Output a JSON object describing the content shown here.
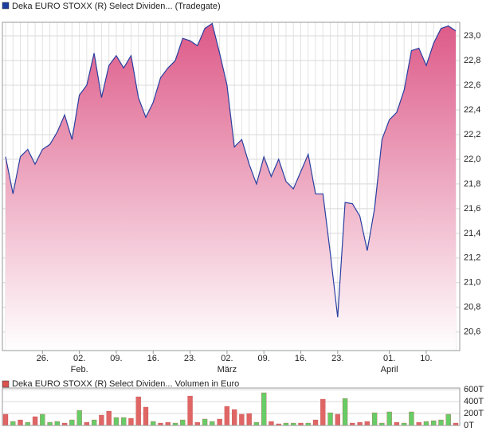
{
  "chart_data": [
    {
      "type": "area",
      "legend": "Deka EURO STOXX (R) Select Dividen... (Tradegate)",
      "legend_color": "#1a3d9c",
      "line_color": "#2a3fa0",
      "fill_color": "#e0608c",
      "categories": [
        null,
        null,
        null,
        null,
        null,
        "26.",
        null,
        null,
        null,
        null,
        "02.",
        null,
        null,
        null,
        null,
        "09.",
        null,
        null,
        null,
        null,
        "16.",
        null,
        null,
        null,
        null,
        "23.",
        null,
        null,
        null,
        null,
        "02.",
        null,
        null,
        null,
        null,
        "09.",
        null,
        null,
        null,
        null,
        "16.",
        null,
        null,
        null,
        null,
        "23.",
        null,
        null,
        null,
        null,
        null,
        null,
        "01.",
        null,
        null,
        null,
        null,
        "10.",
        null,
        null,
        null,
        null
      ],
      "months": [
        null,
        null,
        null,
        null,
        null,
        null,
        null,
        null,
        null,
        null,
        "Feb.",
        null,
        null,
        null,
        null,
        null,
        null,
        null,
        null,
        null,
        null,
        null,
        null,
        null,
        null,
        null,
        null,
        null,
        null,
        null,
        "März",
        null,
        null,
        null,
        null,
        null,
        null,
        null,
        null,
        null,
        null,
        null,
        null,
        null,
        null,
        null,
        null,
        null,
        null,
        null,
        null,
        null,
        "April",
        null,
        null,
        null,
        null,
        null,
        null,
        null,
        null,
        null
      ],
      "values": [
        22.02,
        21.72,
        22.02,
        22.08,
        21.96,
        22.08,
        22.12,
        22.22,
        22.36,
        22.16,
        22.52,
        22.6,
        22.86,
        22.5,
        22.76,
        22.84,
        22.74,
        22.84,
        22.5,
        22.34,
        22.46,
        22.66,
        22.74,
        22.8,
        22.98,
        22.96,
        22.92,
        23.06,
        23.1,
        22.86,
        22.6,
        22.1,
        22.16,
        21.96,
        21.8,
        22.02,
        21.86,
        22.0,
        21.82,
        21.76,
        21.9,
        22.04,
        21.72,
        21.72,
        21.24,
        20.72,
        21.65,
        21.64,
        21.54,
        21.26,
        21.6,
        22.16,
        22.32,
        22.38,
        22.56,
        22.88,
        22.9,
        22.76,
        22.94,
        23.06,
        23.08,
        23.04
      ],
      "ylim": [
        20.45,
        23.11
      ],
      "yticks": [
        {
          "value": 20.6,
          "label": "20,6"
        },
        {
          "value": 20.8,
          "label": "20,8"
        },
        {
          "value": 21.0,
          "label": "21,0"
        },
        {
          "value": 21.2,
          "label": "21,2"
        },
        {
          "value": 21.4,
          "label": "21,4"
        },
        {
          "value": 21.6,
          "label": "21,6"
        },
        {
          "value": 21.8,
          "label": "21,8"
        },
        {
          "value": 22.0,
          "label": "22,0"
        },
        {
          "value": 22.2,
          "label": "22,2"
        },
        {
          "value": 22.4,
          "label": "22,4"
        },
        {
          "value": 22.6,
          "label": "22,6"
        },
        {
          "value": 22.8,
          "label": "22,8"
        },
        {
          "value": 23.0,
          "label": "23,0"
        }
      ],
      "grid": true
    },
    {
      "type": "bar",
      "legend": "Deka EURO STOXX (R) Select Dividen... Volumen in Euro",
      "legend_color": "#d9534f",
      "values": [
        187,
        67,
        93,
        53,
        147,
        187,
        53,
        67,
        40,
        93,
        253,
        53,
        93,
        173,
        240,
        133,
        133,
        120,
        480,
        307,
        67,
        40,
        53,
        40,
        93,
        493,
        53,
        107,
        67,
        107,
        320,
        267,
        187,
        200,
        53,
        547,
        67,
        27,
        40,
        40,
        40,
        40,
        93,
        440,
        213,
        187,
        453,
        40,
        53,
        67,
        213,
        40,
        227,
        53,
        40,
        227,
        53,
        67,
        80,
        93,
        187,
        40
      ],
      "colors": [
        "#e06666",
        "#66cc66",
        "#e06666",
        "#66cc66",
        "#e06666",
        "#66cc66",
        "#66cc66",
        "#66cc66",
        "#e06666",
        "#66cc66",
        "#66cc66",
        "#e06666",
        "#66cc66",
        "#e06666",
        "#e06666",
        "#66cc66",
        "#66cc66",
        "#e06666",
        "#e06666",
        "#e06666",
        "#66cc66",
        "#e06666",
        "#e06666",
        "#66cc66",
        "#66cc66",
        "#e06666",
        "#e06666",
        "#66cc66",
        "#66cc66",
        "#e06666",
        "#e06666",
        "#e06666",
        "#e06666",
        "#e06666",
        "#66cc66",
        "#66cc66",
        "#e06666",
        "#e06666",
        "#66cc66",
        "#66cc66",
        "#e06666",
        "#66cc66",
        "#e06666",
        "#e06666",
        "#66cc66",
        "#e06666",
        "#66cc66",
        "#e06666",
        "#e06666",
        "#e06666",
        "#66cc66",
        "#66cc66",
        "#66cc66",
        "#e06666",
        "#66cc66",
        "#66cc66",
        "#e06666",
        "#66cc66",
        "#66cc66",
        "#66cc66",
        "#66cc66",
        "#e06666"
      ],
      "ylim": [
        0,
        627
      ],
      "yticks": [
        {
          "value": 0,
          "label": "0T"
        },
        {
          "value": 200,
          "label": "200T"
        },
        {
          "value": 400,
          "label": "400T"
        },
        {
          "value": 600,
          "label": "600T"
        }
      ],
      "grid": true
    }
  ]
}
